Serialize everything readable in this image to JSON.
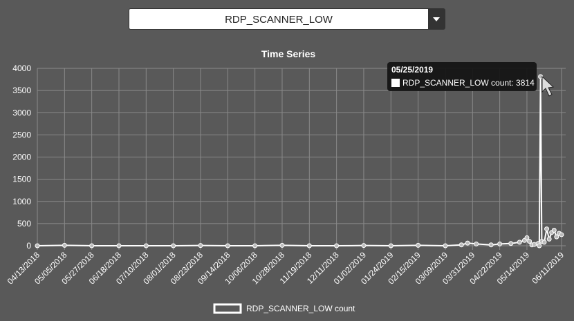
{
  "dropdown": {
    "selected": "RDP_SCANNER_LOW"
  },
  "chart_data": {
    "type": "line",
    "title": "Time Series",
    "x": [
      "04/13/2018",
      "05/05/2018",
      "05/27/2018",
      "06/18/2018",
      "07/10/2018",
      "08/01/2018",
      "08/23/2018",
      "09/14/2018",
      "10/06/2018",
      "10/28/2018",
      "11/19/2018",
      "12/11/2018",
      "01/02/2019",
      "01/24/2019",
      "02/15/2019",
      "03/09/2019",
      "03/22/2019",
      "03/27/2019",
      "04/03/2019",
      "04/15/2019",
      "04/22/2019",
      "05/01/2019",
      "05/08/2019",
      "05/12/2019",
      "05/14/2019",
      "05/16/2019",
      "05/18/2019",
      "05/20/2019",
      "05/23/2019",
      "05/24/2019",
      "05/25/2019",
      "05/26/2019",
      "05/28/2019",
      "05/30/2019",
      "06/01/2019",
      "06/03/2019",
      "06/05/2019",
      "06/07/2019",
      "06/09/2019",
      "06/11/2019"
    ],
    "series": [
      {
        "name": "RDP_SCANNER_LOW count",
        "color": "#ffffff",
        "values": [
          0,
          10,
          0,
          0,
          0,
          0,
          5,
          0,
          0,
          10,
          0,
          0,
          5,
          0,
          10,
          0,
          20,
          60,
          40,
          20,
          40,
          50,
          80,
          120,
          180,
          100,
          20,
          30,
          50,
          0,
          3814,
          100,
          80,
          380,
          150,
          300,
          350,
          200,
          280,
          250
        ]
      }
    ],
    "xlim": [
      "04/13/2018",
      "06/11/2019"
    ],
    "xticks": [
      "04/13/2018",
      "05/05/2018",
      "05/27/2018",
      "06/18/2018",
      "07/10/2018",
      "08/01/2018",
      "08/23/2018",
      "09/14/2018",
      "10/06/2018",
      "10/28/2018",
      "11/19/2018",
      "12/11/2018",
      "01/02/2019",
      "01/24/2019",
      "02/15/2019",
      "03/09/2019",
      "03/31/2019",
      "04/22/2019",
      "05/14/2019",
      "06/11/2019"
    ],
    "ylim": [
      0,
      4000
    ],
    "yticks": [
      0,
      500,
      1000,
      1500,
      2000,
      2500,
      3000,
      3500,
      4000
    ],
    "grid": true,
    "tooltip": {
      "title": "05/25/2019",
      "text": "RDP_SCANNER_LOW count: 3814"
    }
  }
}
